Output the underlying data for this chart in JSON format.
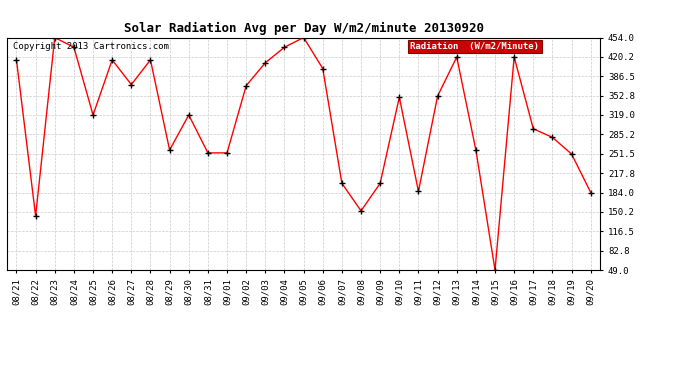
{
  "title": "Solar Radiation Avg per Day W/m2/minute 20130920",
  "copyright": "Copyright 2013 Cartronics.com",
  "legend_label": "Radiation  (W/m2/Minute)",
  "dates": [
    "08/21",
    "08/22",
    "08/23",
    "08/24",
    "08/25",
    "08/26",
    "08/27",
    "08/28",
    "08/29",
    "08/30",
    "08/31",
    "09/01",
    "09/02",
    "09/03",
    "09/04",
    "09/05",
    "09/06",
    "09/07",
    "09/08",
    "09/09",
    "09/10",
    "09/11",
    "09/12",
    "09/13",
    "09/14",
    "09/15",
    "09/16",
    "09/17",
    "09/18",
    "09/19",
    "09/20"
  ],
  "values": [
    415,
    143,
    454,
    437,
    319,
    415,
    372,
    415,
    258,
    319,
    253,
    253,
    370,
    410,
    437,
    454,
    400,
    200,
    152,
    200,
    350,
    186,
    352,
    420,
    258,
    49,
    420,
    295,
    280,
    251,
    184
  ],
  "y_ticks": [
    49.0,
    82.8,
    116.5,
    150.2,
    184.0,
    217.8,
    251.5,
    285.2,
    319.0,
    352.8,
    386.5,
    420.2,
    454.0
  ],
  "y_min": 49.0,
  "y_max": 454.0,
  "line_color": "#ff0000",
  "marker_color": "#000000",
  "bg_color": "#ffffff",
  "grid_color": "#cccccc",
  "legend_bg": "#cc0000",
  "legend_text_color": "#ffffff",
  "title_fontsize": 9,
  "copyright_fontsize": 6.5,
  "tick_fontsize": 6.5,
  "legend_fontsize": 6.5
}
